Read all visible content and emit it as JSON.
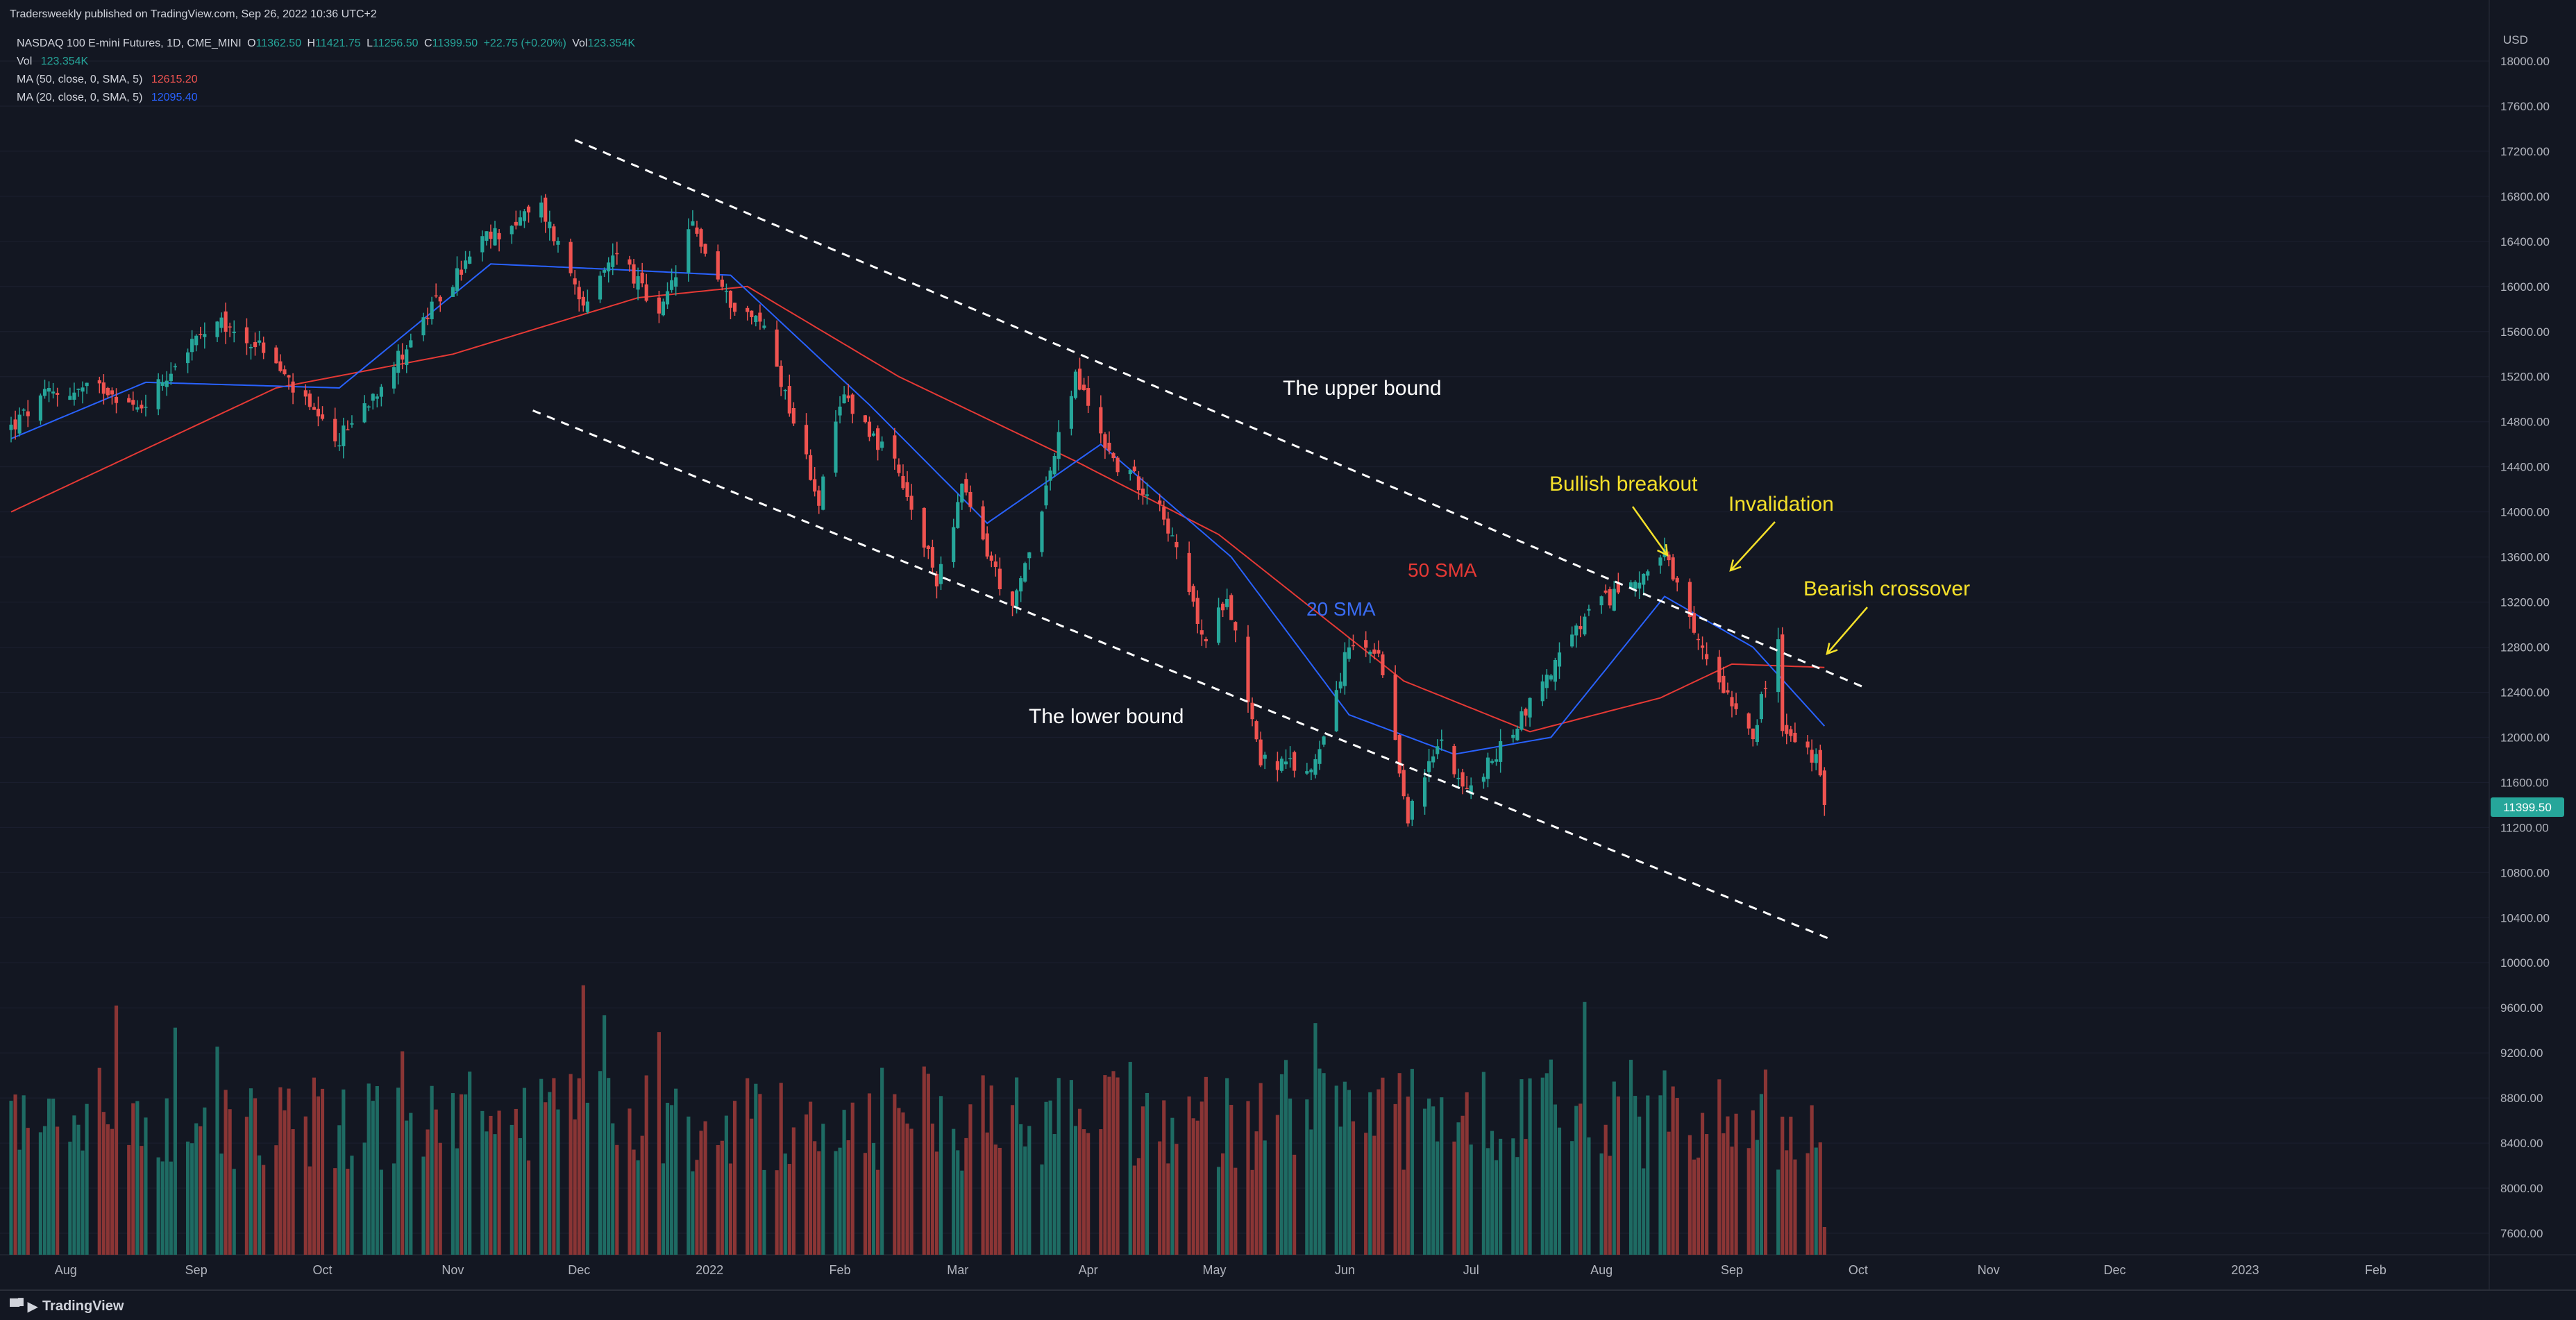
{
  "header": {
    "published_line": "Tradersweekly published on TradingView.com, Sep 26, 2022 10:36 UTC+2"
  },
  "legend": {
    "symbol": "NASDAQ 100 E-mini Futures, 1D, CME_MINI",
    "ohlc": [
      {
        "key": "O",
        "value": "11362.50"
      },
      {
        "key": "H",
        "value": "11421.75"
      },
      {
        "key": "L",
        "value": "11256.50"
      },
      {
        "key": "C",
        "value": "11399.50"
      }
    ],
    "change": "+22.75 (+0.20%)",
    "vol_label": "Vol",
    "vol_value": "123.354K",
    "ma50_label": "MA (50, close, 0, SMA, 5)",
    "ma50_value": "12615.20",
    "ma20_label": "MA (20, close, 0, SMA, 5)",
    "ma20_value": "12095.40"
  },
  "price_axis": {
    "currency": "USD",
    "ticks": [
      "18000.00",
      "17600.00",
      "17200.00",
      "16800.00",
      "16400.00",
      "16000.00",
      "15600.00",
      "15200.00",
      "14800.00",
      "14400.00",
      "14000.00",
      "13600.00",
      "13200.00",
      "12800.00",
      "12400.00",
      "12000.00",
      "11600.00",
      "11200.00",
      "10800.00",
      "10400.00",
      "10000.00",
      "9600.00",
      "9200.00",
      "8800.00",
      "8400.00",
      "8000.00",
      "7600.00"
    ],
    "last_price": "11399.50"
  },
  "time_axis": {
    "labels": [
      "Aug",
      "Sep",
      "Oct",
      "Nov",
      "Dec",
      "2022",
      "Feb",
      "Mar",
      "Apr",
      "May",
      "Jun",
      "Jul",
      "Aug",
      "Sep",
      "Oct",
      "Nov",
      "Dec",
      "2023",
      "Feb"
    ]
  },
  "annotations": {
    "upper_bound": "The upper bound",
    "lower_bound": "The lower bound",
    "sma50": "50 SMA",
    "sma20": "20 SMA",
    "bullish_breakout": "Bullish breakout",
    "invalidation": "Invalidation",
    "bearish_crossover": "Bearish crossover"
  },
  "footer": {
    "brand": "TradingView"
  },
  "colors": {
    "background": "#131722",
    "up_candle": "#26a69a",
    "down_candle": "#ef5350",
    "up_volume": "#1e6b63",
    "down_volume": "#8a3535",
    "ma50": "#e53935",
    "ma20": "#2962ff",
    "annotation_yellow": "#f5e12a",
    "annotation_white": "#ffffff",
    "last_price_bg": "#26a69a"
  },
  "chart_data": {
    "type": "candlestick",
    "symbol": "NASDAQ 100 E-mini Futures",
    "interval": "1D",
    "y_axis": {
      "min": 7400,
      "max": 18100,
      "scale": "linear"
    },
    "x_axis": {
      "start": "2021-07-19",
      "end": "2023-02-28"
    },
    "price_path": [
      {
        "date": "2021-07-19",
        "close": 14750
      },
      {
        "date": "2021-07-28",
        "close": 15050
      },
      {
        "date": "2021-08-11",
        "close": 15100
      },
      {
        "date": "2021-08-18",
        "close": 14900
      },
      {
        "date": "2021-08-31",
        "close": 15500
      },
      {
        "date": "2021-09-07",
        "close": 15650
      },
      {
        "date": "2021-09-17",
        "close": 15450
      },
      {
        "date": "2021-10-04",
        "close": 14600
      },
      {
        "date": "2021-10-14",
        "close": 15100
      },
      {
        "date": "2021-10-29",
        "close": 15900
      },
      {
        "date": "2021-11-08",
        "close": 16400
      },
      {
        "date": "2021-11-22",
        "close": 16700
      },
      {
        "date": "2021-12-03",
        "close": 15800
      },
      {
        "date": "2021-12-10",
        "close": 16350
      },
      {
        "date": "2021-12-20",
        "close": 15700
      },
      {
        "date": "2021-12-28",
        "close": 16550
      },
      {
        "date": "2022-01-05",
        "close": 15900
      },
      {
        "date": "2022-01-14",
        "close": 15650
      },
      {
        "date": "2022-01-27",
        "close": 14100
      },
      {
        "date": "2022-02-02",
        "close": 15050
      },
      {
        "date": "2022-02-14",
        "close": 14400
      },
      {
        "date": "2022-02-24",
        "close": 13400
      },
      {
        "date": "2022-03-02",
        "close": 14200
      },
      {
        "date": "2022-03-14",
        "close": 13100
      },
      {
        "date": "2022-03-29",
        "close": 15200
      },
      {
        "date": "2022-04-07",
        "close": 14450
      },
      {
        "date": "2022-04-18",
        "close": 14100
      },
      {
        "date": "2022-04-29",
        "close": 12800
      },
      {
        "date": "2022-05-04",
        "close": 13300
      },
      {
        "date": "2022-05-12",
        "close": 11800
      },
      {
        "date": "2022-05-24",
        "close": 11700
      },
      {
        "date": "2022-06-02",
        "close": 12800
      },
      {
        "date": "2022-06-09",
        "close": 12700
      },
      {
        "date": "2022-06-16",
        "close": 11300
      },
      {
        "date": "2022-06-24",
        "close": 12000
      },
      {
        "date": "2022-06-30",
        "close": 11500
      },
      {
        "date": "2022-07-08",
        "close": 11900
      },
      {
        "date": "2022-07-20",
        "close": 12600
      },
      {
        "date": "2022-07-29",
        "close": 13100
      },
      {
        "date": "2022-08-16",
        "close": 13600
      },
      {
        "date": "2022-08-23",
        "close": 12900
      },
      {
        "date": "2022-08-31",
        "close": 12400
      },
      {
        "date": "2022-09-06",
        "close": 12050
      },
      {
        "date": "2022-09-12",
        "close": 12850
      },
      {
        "date": "2022-09-13",
        "close": 12050
      },
      {
        "date": "2022-09-21",
        "close": 11800
      },
      {
        "date": "2022-09-23",
        "close": 11400
      }
    ],
    "series": [
      {
        "name": "50 SMA",
        "points": [
          {
            "date": "2021-07-19",
            "value": 14000
          },
          {
            "date": "2021-09-20",
            "value": 15100
          },
          {
            "date": "2021-11-01",
            "value": 15400
          },
          {
            "date": "2021-12-15",
            "value": 15900
          },
          {
            "date": "2022-01-10",
            "value": 16000
          },
          {
            "date": "2022-02-15",
            "value": 15200
          },
          {
            "date": "2022-03-29",
            "value": 14450
          },
          {
            "date": "2022-05-02",
            "value": 13800
          },
          {
            "date": "2022-06-15",
            "value": 12500
          },
          {
            "date": "2022-07-15",
            "value": 12050
          },
          {
            "date": "2022-08-15",
            "value": 12350
          },
          {
            "date": "2022-09-01",
            "value": 12650
          },
          {
            "date": "2022-09-23",
            "value": 12620
          }
        ]
      },
      {
        "name": "20 SMA",
        "points": [
          {
            "date": "2021-07-19",
            "value": 14650
          },
          {
            "date": "2021-08-20",
            "value": 15150
          },
          {
            "date": "2021-10-05",
            "value": 15100
          },
          {
            "date": "2021-11-10",
            "value": 16200
          },
          {
            "date": "2021-12-10",
            "value": 16150
          },
          {
            "date": "2022-01-06",
            "value": 16100
          },
          {
            "date": "2022-02-08",
            "value": 14950
          },
          {
            "date": "2022-03-08",
            "value": 13900
          },
          {
            "date": "2022-04-04",
            "value": 14600
          },
          {
            "date": "2022-05-05",
            "value": 13600
          },
          {
            "date": "2022-06-02",
            "value": 12200
          },
          {
            "date": "2022-06-27",
            "value": 11850
          },
          {
            "date": "2022-07-20",
            "value": 12000
          },
          {
            "date": "2022-08-16",
            "value": 13250
          },
          {
            "date": "2022-09-06",
            "value": 12800
          },
          {
            "date": "2022-09-23",
            "value": 12100
          }
        ]
      }
    ],
    "trendlines": [
      {
        "name": "The upper bound",
        "from": {
          "date": "2021-11-30",
          "price": 17300
        },
        "to": {
          "date": "2022-10-02",
          "price": 12450
        }
      },
      {
        "name": "The lower bound",
        "from": {
          "date": "2021-11-20",
          "price": 14900
        },
        "to": {
          "date": "2022-09-25",
          "price": 10200
        }
      }
    ],
    "volume_axis_note": "volume bars share the lower pane, unlabeled",
    "last_price": 11399.5
  }
}
